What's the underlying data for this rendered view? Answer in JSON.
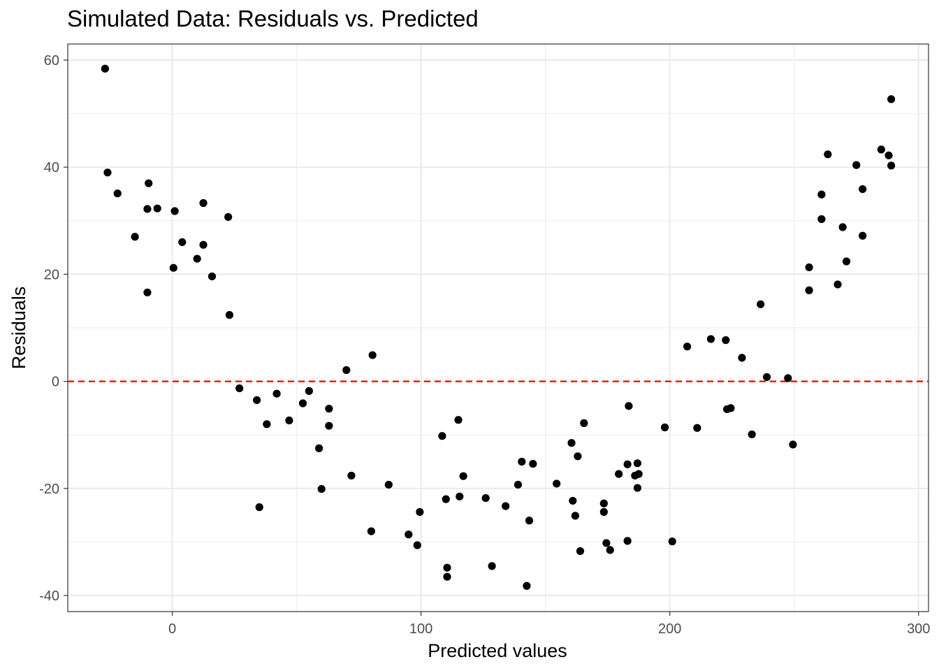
{
  "chart_data": {
    "type": "scatter",
    "title": "Simulated Data: Residuals vs. Predicted",
    "xlabel": "Predicted values",
    "ylabel": "Residuals",
    "xlim": [
      -42,
      304
    ],
    "ylim": [
      -43,
      63
    ],
    "x_ticks": [
      0,
      100,
      200,
      300
    ],
    "y_ticks": [
      -40,
      -20,
      0,
      20,
      40,
      60
    ],
    "x_tick_labels": [
      "0",
      "100",
      "200",
      "300"
    ],
    "y_tick_labels": [
      "-40",
      "-20",
      "0",
      "20",
      "40",
      "60"
    ],
    "grid": true,
    "reference_line": {
      "y": 0,
      "style": "dashed",
      "color": "#ff0000"
    },
    "point_color": "#000000",
    "series": [
      {
        "points": [
          [
            -27,
            58.4
          ],
          [
            -26,
            39.0
          ],
          [
            -22,
            35.1
          ],
          [
            -15,
            27.0
          ],
          [
            -10,
            32.2
          ],
          [
            -9.5,
            37.0
          ],
          [
            -10,
            16.6
          ],
          [
            -6,
            32.3
          ],
          [
            1,
            31.8
          ],
          [
            0.5,
            21.2
          ],
          [
            4,
            26.0
          ],
          [
            10,
            22.9
          ],
          [
            12.5,
            33.3
          ],
          [
            12.5,
            25.5
          ],
          [
            16,
            19.6
          ],
          [
            22.5,
            30.7
          ],
          [
            23,
            12.4
          ],
          [
            27,
            -1.3
          ],
          [
            34,
            -3.5
          ],
          [
            35,
            -23.5
          ],
          [
            38,
            -8.0
          ],
          [
            42,
            -2.3
          ],
          [
            47,
            -7.3
          ],
          [
            52.5,
            -4.1
          ],
          [
            55,
            -1.8
          ],
          [
            59,
            -12.5
          ],
          [
            60,
            -20.1
          ],
          [
            63,
            -5.1
          ],
          [
            63,
            -8.3
          ],
          [
            70,
            2.1
          ],
          [
            72,
            -17.6
          ],
          [
            80,
            -28.0
          ],
          [
            80.5,
            4.9
          ],
          [
            87,
            -19.3
          ],
          [
            95,
            -28.6
          ],
          [
            98.5,
            -30.6
          ],
          [
            99.5,
            -24.4
          ],
          [
            108.5,
            -10.2
          ],
          [
            110,
            -22.0
          ],
          [
            110.5,
            -34.8
          ],
          [
            110.5,
            -36.5
          ],
          [
            115,
            -7.2
          ],
          [
            115.5,
            -21.5
          ],
          [
            117,
            -17.7
          ],
          [
            126,
            -21.8
          ],
          [
            128.5,
            -34.5
          ],
          [
            134,
            -23.3
          ],
          [
            139,
            -19.3
          ],
          [
            140.5,
            -15.0
          ],
          [
            142.5,
            -38.2
          ],
          [
            143.5,
            -26.0
          ],
          [
            145,
            -15.4
          ],
          [
            154.5,
            -19.1
          ],
          [
            160.5,
            -11.5
          ],
          [
            161,
            -22.3
          ],
          [
            162,
            -25.1
          ],
          [
            163,
            -14.0
          ],
          [
            164,
            -31.7
          ],
          [
            165.5,
            -7.8
          ],
          [
            173.5,
            -22.8
          ],
          [
            173.5,
            -24.4
          ],
          [
            174.5,
            -30.2
          ],
          [
            176,
            -31.5
          ],
          [
            179.5,
            -17.3
          ],
          [
            183,
            -29.8
          ],
          [
            183,
            -15.5
          ],
          [
            183.5,
            -4.6
          ],
          [
            186,
            -17.6
          ],
          [
            187,
            -15.3
          ],
          [
            187.5,
            -17.3
          ],
          [
            187,
            -19.9
          ],
          [
            198,
            -8.6
          ],
          [
            201,
            -29.9
          ],
          [
            207,
            6.5
          ],
          [
            211,
            -8.7
          ],
          [
            216.5,
            7.9
          ],
          [
            222.5,
            7.7
          ],
          [
            223,
            -5.2
          ],
          [
            224.5,
            -5.0
          ],
          [
            229,
            4.4
          ],
          [
            233,
            -9.9
          ],
          [
            236.5,
            14.4
          ],
          [
            239,
            0.8
          ],
          [
            247.5,
            0.6
          ],
          [
            249.5,
            -11.8
          ],
          [
            256,
            21.3
          ],
          [
            256,
            17.0
          ],
          [
            261,
            34.9
          ],
          [
            261,
            30.3
          ],
          [
            263.5,
            42.4
          ],
          [
            267.5,
            18.1
          ],
          [
            269.5,
            28.8
          ],
          [
            271,
            22.4
          ],
          [
            275,
            40.4
          ],
          [
            277.5,
            35.9
          ],
          [
            277.5,
            27.2
          ],
          [
            285,
            43.3
          ],
          [
            288,
            42.2
          ],
          [
            289,
            40.3
          ],
          [
            289,
            52.7
          ]
        ]
      }
    ]
  }
}
